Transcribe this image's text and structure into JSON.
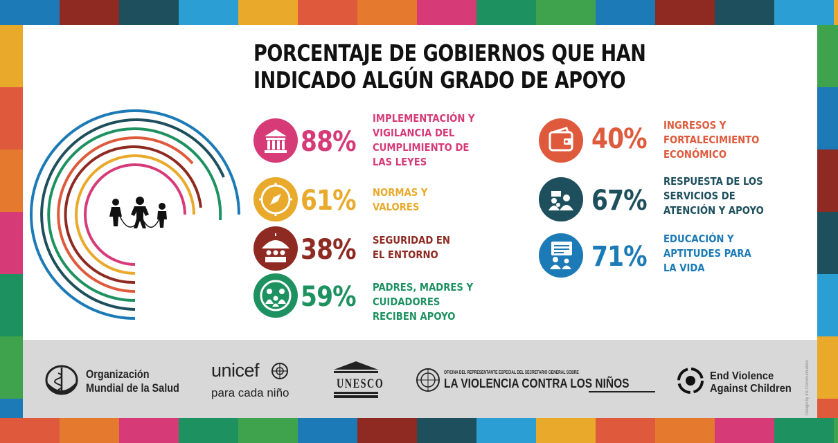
{
  "title": {
    "line1": "PORCENTAJE DE GOBIERNOS QUE HAN",
    "line2": "INDICADO ALGÚN GRADO DE APOYO"
  },
  "colors": {
    "magenta": "#d63b78",
    "yellow": "#e9a92a",
    "darkred": "#8e2a22",
    "green": "#1e9161",
    "orange": "#df5a3c",
    "teal": "#1d4f5c",
    "blue": "#1c7ab6"
  },
  "items": [
    {
      "icon": "courthouse-icon",
      "color": "#d63b78",
      "percent": "88%",
      "lines": [
        "IMPLEMENTACIÓN Y",
        "VIGILANCIA DEL",
        "CUMPLIMIENTO DE",
        "LAS LEYES"
      ]
    },
    {
      "icon": "compass-icon",
      "color": "#e9a92a",
      "percent": "61%",
      "lines": [
        "NORMAS Y",
        "VALORES"
      ]
    },
    {
      "icon": "umbrella-icon",
      "color": "#8e2a22",
      "percent": "38%",
      "lines": [
        "SEGURIDAD EN",
        "EL ENTORNO"
      ]
    },
    {
      "icon": "family-icon",
      "color": "#1e9161",
      "percent": "59%",
      "lines": [
        "PADRES, MADRES Y",
        "CUIDADORES",
        "RECIBEN APOYO"
      ]
    },
    {
      "icon": "wallet-icon",
      "color": "#df5a3c",
      "percent": "40%",
      "lines": [
        "INGRESOS Y",
        "FORTALECIMIENTO",
        "ECONÓMICO"
      ]
    },
    {
      "icon": "support-service-icon",
      "color": "#1d4f5c",
      "percent": "67%",
      "lines": [
        "RESPUESTA DE LOS",
        "SERVICIOS DE",
        "ATENCIÓN Y APOYO"
      ]
    },
    {
      "icon": "education-icon",
      "color": "#1c7ab6",
      "percent": "71%",
      "lines": [
        "EDUCACIÓN Y",
        "APTITUDES PARA",
        "LA VIDA"
      ]
    }
  ],
  "logos": {
    "who": {
      "line1": "Organización",
      "line2": "Mundial de la Salud"
    },
    "unicef": {
      "name": "unicef",
      "tagline": "para cada niño"
    },
    "unesco": {
      "name": "UNESCO"
    },
    "srsg": {
      "small": "OFICINA DEL REPRESENTANTE ESPECIAL DEL SECRETARIO GENERAL SOBRE",
      "main": "LA VIOLENCIA CONTRA LOS NIÑOS"
    },
    "evac": {
      "line1": "End Violence",
      "line2": "Against Children"
    }
  },
  "credit": "Design by Iris Communication"
}
